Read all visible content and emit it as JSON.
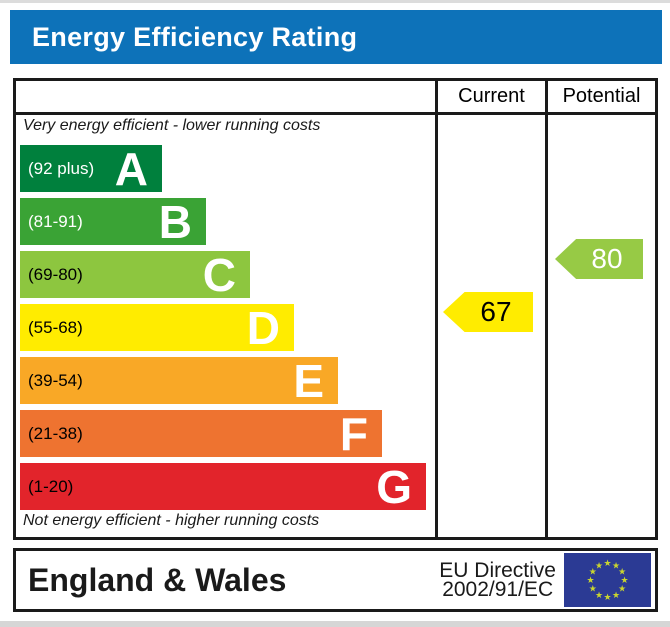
{
  "title": "Energy Efficiency Rating",
  "columns": {
    "current": "Current",
    "potential": "Potential"
  },
  "captions": {
    "top": "Very energy efficient - lower running costs",
    "bottom": "Not energy efficient - higher running costs"
  },
  "bands": [
    {
      "letter": "A",
      "range": "(92 plus)",
      "color": "#00803d",
      "label_color": "#ffffff"
    },
    {
      "letter": "B",
      "range": "(81-91)",
      "color": "#3aa335",
      "label_color": "#ffffff"
    },
    {
      "letter": "C",
      "range": "(69-80)",
      "color": "#8dc63f",
      "label_color": "#000000"
    },
    {
      "letter": "D",
      "range": "(55-68)",
      "color": "#ffec00",
      "label_color": "#000000"
    },
    {
      "letter": "E",
      "range": "(39-54)",
      "color": "#f9a826",
      "label_color": "#000000"
    },
    {
      "letter": "F",
      "range": "(21-38)",
      "color": "#ee7330",
      "label_color": "#000000"
    },
    {
      "letter": "G",
      "range": "(1-20)",
      "color": "#e2242b",
      "label_color": "#000000"
    }
  ],
  "current": {
    "value": "67",
    "band": "D",
    "color": "#ffec00",
    "text_color": "#000000"
  },
  "potential": {
    "value": "80",
    "band": "C",
    "color": "#97ca45",
    "text_color": "#ffffff"
  },
  "footer": {
    "region": "England & Wales",
    "directive_line1": "EU Directive",
    "directive_line2": "2002/91/EC"
  },
  "colors": {
    "header_bar": "#0d72b9",
    "border": "#1a1a1a",
    "eu_flag_blue": "#2b3a94",
    "eu_flag_star": "#c9d52f"
  },
  "chart_data": {
    "type": "bar",
    "title": "Energy Efficiency Rating",
    "categories": [
      "A",
      "B",
      "C",
      "D",
      "E",
      "F",
      "G"
    ],
    "band_ranges": [
      "92 plus",
      "81-91",
      "69-80",
      "55-68",
      "39-54",
      "21-38",
      "1-20"
    ],
    "band_colors": [
      "#00803d",
      "#3aa335",
      "#8dc63f",
      "#ffec00",
      "#f9a826",
      "#ee7330",
      "#e2242b"
    ],
    "series": [
      {
        "name": "Current",
        "values": [
          67
        ],
        "band": "D"
      },
      {
        "name": "Potential",
        "values": [
          80
        ],
        "band": "C"
      }
    ],
    "scale": [
      1,
      100
    ],
    "xlabel": "",
    "ylabel": "",
    "annotations": [
      "Very energy efficient - lower running costs",
      "Not energy efficient - higher running costs",
      "England & Wales",
      "EU Directive 2002/91/EC"
    ]
  }
}
